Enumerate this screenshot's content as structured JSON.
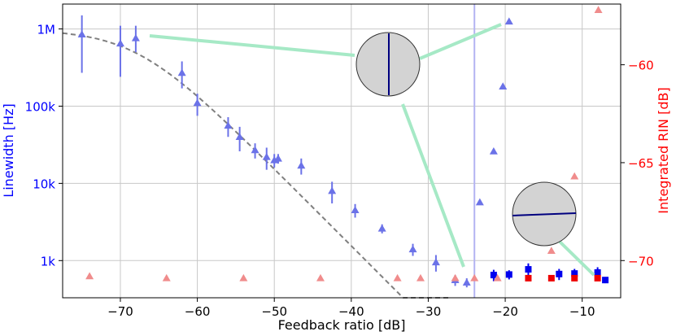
{
  "chart_data": {
    "type": "scatter",
    "xlabel": "Feedback ratio [dB]",
    "ylabel_left": "Linewidth [Hz]",
    "ylabel_right": "Integrated RIN [dB]",
    "xlim": [
      -77.5,
      -5
    ],
    "ylim_left": [
      330,
      2100000
    ],
    "ylim_right": [
      -71.9,
      -56.9
    ],
    "yscale_left": "log",
    "grid": true,
    "x_ticks": [
      -70,
      -60,
      -50,
      -40,
      -30,
      -20,
      -10
    ],
    "x_tick_labels": [
      "−70",
      "−60",
      "−50",
      "−40",
      "−30",
      "−20",
      "−10"
    ],
    "y_left_ticks": [
      1000,
      10000,
      100000,
      1000000
    ],
    "y_left_tick_labels": [
      "1k",
      "10k",
      "100k",
      "1M"
    ],
    "y_right_ticks": [
      -70,
      -65,
      -60
    ],
    "y_right_tick_labels": [
      "−70",
      "−65",
      "−60"
    ],
    "colors": {
      "linewidth_triangles": "#6b72e8",
      "linewidth_squares": "#0000ee",
      "rin_triangles": "#f08c8c",
      "rin_squares": "#ee0000",
      "fit_line": "#7f7f7f",
      "threshold_line": "#b4b4f2",
      "arrows": "#a6e9c6",
      "grid": "#c8c8c8",
      "left_axis_text": "#0000ff",
      "right_axis_text": "#ff0000"
    },
    "vertical_line_x": -24,
    "linewidth_triangles": [
      {
        "x": -75,
        "y": 850000,
        "lo": 270000,
        "hi": 1500000
      },
      {
        "x": -70,
        "y": 650000,
        "lo": 240000,
        "hi": 1100000
      },
      {
        "x": -68,
        "y": 760000,
        "lo": 500000,
        "hi": 1100000
      },
      {
        "x": -62,
        "y": 270000,
        "lo": 170000,
        "hi": 380000
      },
      {
        "x": -60,
        "y": 110000,
        "lo": 75000,
        "hi": 145000
      },
      {
        "x": -56,
        "y": 56000,
        "lo": 40000,
        "hi": 72000
      },
      {
        "x": -54.5,
        "y": 40000,
        "lo": 26000,
        "hi": 54000
      },
      {
        "x": -52.5,
        "y": 27000,
        "lo": 21000,
        "hi": 33000
      },
      {
        "x": -51,
        "y": 22000,
        "lo": 15000,
        "hi": 29000
      },
      {
        "x": -50,
        "y": 20000,
        "lo": 16000,
        "hi": 24000
      },
      {
        "x": -49.5,
        "y": 21000,
        "lo": 18000,
        "hi": 24000
      },
      {
        "x": -46.5,
        "y": 17000,
        "lo": 13000,
        "hi": 21000
      },
      {
        "x": -42.5,
        "y": 8000,
        "lo": 5500,
        "hi": 10500
      },
      {
        "x": -39.5,
        "y": 4500,
        "lo": 3600,
        "hi": 5400
      },
      {
        "x": -36,
        "y": 2600,
        "lo": 2250,
        "hi": 2950
      },
      {
        "x": -32,
        "y": 1400,
        "lo": 1150,
        "hi": 1650
      },
      {
        "x": -29,
        "y": 950,
        "lo": 720,
        "hi": 1180
      },
      {
        "x": -26.5,
        "y": 560,
        "lo": 470,
        "hi": 650
      },
      {
        "x": -25,
        "y": 520,
        "lo": 450,
        "hi": 590
      },
      {
        "x": -23.3,
        "y": 5700,
        "lo": 5700,
        "hi": 5700
      },
      {
        "x": -21.5,
        "y": 26000,
        "lo": 26000,
        "hi": 26000
      },
      {
        "x": -20.3,
        "y": 180000,
        "lo": 180000,
        "hi": 180000
      },
      {
        "x": -19.5,
        "y": 1250000,
        "lo": 1250000,
        "hi": 1250000
      }
    ],
    "linewidth_squares": [
      {
        "x": -21.5,
        "y": 650,
        "lo": 540,
        "hi": 760
      },
      {
        "x": -19.5,
        "y": 660,
        "lo": 570,
        "hi": 750
      },
      {
        "x": -17,
        "y": 770,
        "lo": 620,
        "hi": 920
      },
      {
        "x": -13,
        "y": 670,
        "lo": 560,
        "hi": 780
      },
      {
        "x": -11,
        "y": 680,
        "lo": 580,
        "hi": 780
      },
      {
        "x": -8,
        "y": 700,
        "lo": 580,
        "hi": 820
      },
      {
        "x": -7,
        "y": 560,
        "lo": 510,
        "hi": 610
      }
    ],
    "rin_triangles": [
      {
        "x": -74,
        "y": -70.8
      },
      {
        "x": -64,
        "y": -70.9
      },
      {
        "x": -54,
        "y": -70.9
      },
      {
        "x": -44,
        "y": -70.9
      },
      {
        "x": -34,
        "y": -70.9
      },
      {
        "x": -31,
        "y": -70.9
      },
      {
        "x": -26.5,
        "y": -70.9
      },
      {
        "x": -24,
        "y": -70.9
      },
      {
        "x": -21,
        "y": -70.9
      },
      {
        "x": -14,
        "y": -69.5
      },
      {
        "x": -11,
        "y": -65.7
      },
      {
        "x": -7.9,
        "y": -57.2
      }
    ],
    "rin_squares": [
      {
        "x": -17,
        "y": -70.9
      },
      {
        "x": -14,
        "y": -70.9
      },
      {
        "x": -11,
        "y": -70.9
      },
      {
        "x": -8,
        "y": -70.9
      }
    ],
    "fit_curve": {
      "x0": -80,
      "x1": -27,
      "cutoff_db": -68,
      "slope_db_per_decade": 10
    }
  }
}
